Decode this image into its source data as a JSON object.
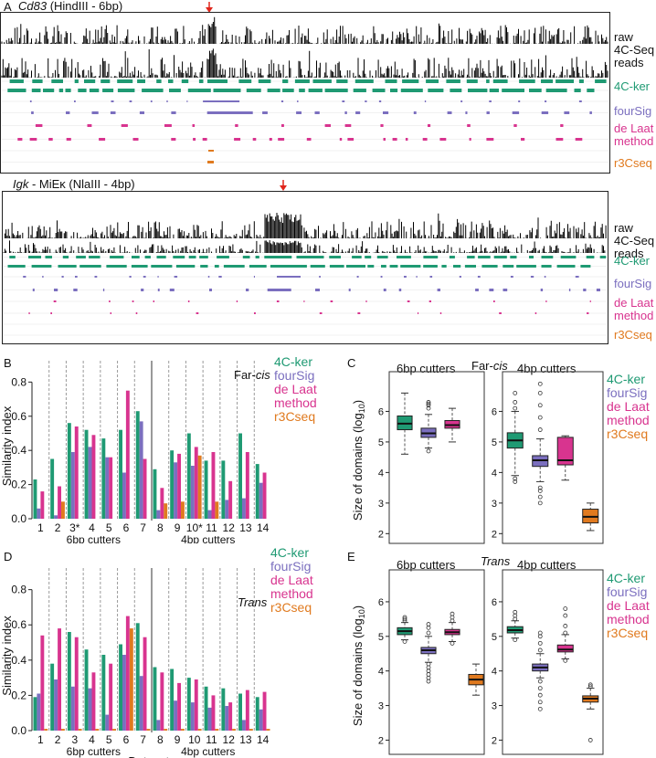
{
  "colors": {
    "kerC": "#1f9a73",
    "fourSig": "#7b6fbf",
    "deLaat": "#d8348f",
    "r3c": "#e07a1f",
    "red": "#e0251b"
  },
  "panelA": {
    "letter": "A",
    "top": {
      "gene": "Cd83",
      "enzyme": " (HindIII - 6bp)"
    },
    "bottom": {
      "gene": "Igk",
      "mid": " - MiEκ (NlaIII - 4bp)"
    },
    "labels": {
      "raw1": "raw",
      "raw2": "4C-Seq",
      "raw3": "reads",
      "ker": "4C-ker",
      "foursig": "fourSig",
      "delaat1": "de Laat",
      "delaat2": "method",
      "r3c": "r3Cseq"
    }
  },
  "panelB": {
    "letter": "B",
    "region": "Far-",
    "region_it": "cis"
  },
  "panelD": {
    "letter": "D",
    "region": "Trans"
  },
  "panelC": {
    "letter": "C",
    "region": "Far-",
    "region_it": "cis",
    "g1": "6bp cutters",
    "g2": "4bp cutters"
  },
  "panelE": {
    "letter": "E",
    "region": "Trans",
    "g1": "6bp cutters",
    "g2": "4bp cutters"
  },
  "legend": {
    "ker": "4C-ker",
    "foursig": "fourSig",
    "delaat1": "de Laat",
    "delaat2": "method",
    "r3c": "r3Cseq"
  },
  "axes": {
    "sim_ylabel": "Similarity index",
    "xlabel": "Datasets",
    "g6": "6bp cutters",
    "g4": "4bp cutters",
    "size_ylabel": "Size of domains (log",
    "size_sub": "10",
    "size_close": ")"
  },
  "chart_data": [
    {
      "type": "bar",
      "title": "Far-cis",
      "ylabel": "Similarity index",
      "xlabel": "Datasets",
      "ylim": [
        0,
        0.85
      ],
      "yticks": [
        0.0,
        0.2,
        0.4,
        0.6,
        0.8
      ],
      "categories": [
        "1",
        "2",
        "3*",
        "4",
        "5",
        "6",
        "7",
        "8",
        "9",
        "10*",
        "11",
        "12",
        "13",
        "14"
      ],
      "series": [
        {
          "name": "4C-ker",
          "values": [
            0.23,
            0.35,
            0.56,
            0.52,
            0.47,
            0.52,
            0.63,
            0.29,
            0.4,
            0.5,
            0.34,
            0.34,
            0.5,
            0.32
          ]
        },
        {
          "name": "fourSig",
          "values": [
            0.06,
            0.02,
            0.39,
            0.42,
            0.36,
            0.27,
            0.57,
            0.05,
            0.33,
            0.31,
            0.05,
            0.11,
            0.12,
            0.21
          ]
        },
        {
          "name": "de Laat method",
          "values": [
            0.16,
            0.19,
            0.54,
            0.49,
            0.36,
            0.75,
            0.35,
            0.18,
            0.38,
            0.42,
            0.39,
            0.22,
            0.39,
            0.27
          ]
        },
        {
          "name": "r3Cseq",
          "values": [
            0.0,
            0.1,
            0.0,
            0.0,
            0.0,
            0.0,
            0.0,
            0.09,
            0.1,
            0.37,
            0.1,
            0.0,
            0.0,
            0.0
          ]
        }
      ]
    },
    {
      "type": "bar",
      "title": "Trans",
      "ylabel": "Similarity index",
      "xlabel": "Datasets",
      "ylim": [
        0,
        0.85
      ],
      "yticks": [
        0.0,
        0.2,
        0.4,
        0.6,
        0.8
      ],
      "categories": [
        "1",
        "2",
        "3",
        "4",
        "5",
        "6",
        "7",
        "8",
        "9",
        "10",
        "11",
        "12",
        "13",
        "14"
      ],
      "series": [
        {
          "name": "4C-ker",
          "values": [
            0.19,
            0.38,
            0.56,
            0.46,
            0.43,
            0.49,
            0.61,
            0.36,
            0.35,
            0.3,
            0.25,
            0.24,
            0.21,
            0.19
          ]
        },
        {
          "name": "fourSig",
          "values": [
            0.21,
            0.29,
            0.25,
            0.24,
            0.09,
            0.43,
            0.31,
            0.06,
            0.17,
            0.16,
            0.13,
            0.14,
            0.06,
            0.12
          ]
        },
        {
          "name": "de Laat method",
          "values": [
            0.54,
            0.58,
            0.53,
            0.33,
            0.38,
            0.65,
            0.53,
            0.33,
            0.27,
            0.29,
            0.2,
            0.16,
            0.23,
            0.22
          ]
        },
        {
          "name": "r3Cseq",
          "values": [
            0.01,
            0.01,
            0.01,
            0.01,
            0.01,
            0.58,
            0.01,
            0.01,
            0.01,
            0.01,
            0.01,
            0.01,
            0.01,
            0.01
          ]
        }
      ]
    },
    {
      "type": "box",
      "title": "Far-cis 6bp cutters",
      "ylabel": "Size of domains (log10)",
      "ylim": [
        1.8,
        7.0
      ],
      "yticks": [
        2,
        3,
        4,
        5,
        6
      ],
      "boxes": [
        {
          "name": "4C-ker",
          "whislo": 4.6,
          "q1": 5.4,
          "med": 5.6,
          "q3": 5.85,
          "whishi": 6.6,
          "fliers": []
        },
        {
          "name": "fourSig",
          "whislo": 4.8,
          "q1": 5.15,
          "med": 5.28,
          "q3": 5.45,
          "whishi": 5.9,
          "fliers": [
            4.7,
            6.1,
            6.2,
            6.25,
            6.3
          ]
        },
        {
          "name": "de Laat method",
          "whislo": 5.0,
          "q1": 5.45,
          "med": 5.55,
          "q3": 5.7,
          "whishi": 6.1,
          "fliers": []
        }
      ]
    },
    {
      "type": "box",
      "title": "Far-cis 4bp cutters",
      "ylabel": "Size of domains (log10)",
      "ylim": [
        1.8,
        7.0
      ],
      "yticks": [
        2,
        3,
        4,
        5,
        6
      ],
      "boxes": [
        {
          "name": "4C-ker",
          "whislo": 3.9,
          "q1": 4.8,
          "med": 5.05,
          "q3": 5.3,
          "whishi": 6.0,
          "fliers": [
            3.7,
            3.8,
            6.1,
            6.3,
            6.6
          ]
        },
        {
          "name": "fourSig",
          "whislo": 3.7,
          "q1": 4.2,
          "med": 4.4,
          "q3": 4.55,
          "whishi": 5.1,
          "fliers": [
            3.0,
            3.2,
            3.4,
            3.5,
            5.4,
            5.8,
            6.2,
            6.6,
            6.9
          ]
        },
        {
          "name": "de Laat method",
          "whislo": 3.75,
          "q1": 4.25,
          "med": 4.4,
          "q3": 5.15,
          "whishi": 5.2,
          "fliers": []
        },
        {
          "name": "r3Cseq",
          "whislo": 2.1,
          "q1": 2.35,
          "med": 2.55,
          "q3": 2.8,
          "whishi": 3.0,
          "fliers": []
        }
      ]
    },
    {
      "type": "box",
      "title": "Trans 6bp cutters",
      "ylabel": "Size of domains (log10)",
      "ylim": [
        1.8,
        6.5
      ],
      "yticks": [
        2,
        3,
        4,
        5,
        6
      ],
      "boxes": [
        {
          "name": "4C-ker",
          "whislo": 4.9,
          "q1": 5.05,
          "med": 5.15,
          "q3": 5.25,
          "whishi": 5.4,
          "fliers": [
            4.85,
            5.45,
            5.5,
            5.55
          ]
        },
        {
          "name": "fourSig",
          "whislo": 4.25,
          "q1": 4.5,
          "med": 4.6,
          "q3": 4.68,
          "whishi": 5.0,
          "fliers": [
            3.7,
            3.8,
            3.9,
            4.0,
            4.1,
            4.2,
            5.1,
            5.25,
            5.35
          ]
        },
        {
          "name": "de Laat method",
          "whislo": 4.85,
          "q1": 5.05,
          "med": 5.12,
          "q3": 5.2,
          "whishi": 5.4,
          "fliers": [
            4.8,
            5.45,
            5.55,
            5.65
          ]
        },
        {
          "name": "r3Cseq",
          "whislo": 3.3,
          "q1": 3.6,
          "med": 3.75,
          "q3": 3.9,
          "whishi": 4.2,
          "fliers": []
        }
      ]
    },
    {
      "type": "box",
      "title": "Trans 4bp cutters",
      "ylabel": "Size of domains (log10)",
      "ylim": [
        1.8,
        6.5
      ],
      "yticks": [
        2,
        3,
        4,
        5,
        6
      ],
      "boxes": [
        {
          "name": "4C-ker",
          "whislo": 4.95,
          "q1": 5.1,
          "med": 5.18,
          "q3": 5.28,
          "whishi": 5.45,
          "fliers": [
            4.9,
            5.5,
            5.6,
            5.7
          ]
        },
        {
          "name": "fourSig",
          "whislo": 3.8,
          "q1": 4.0,
          "med": 4.1,
          "q3": 4.2,
          "whishi": 4.5,
          "fliers": [
            2.9,
            3.1,
            3.3,
            3.5,
            3.7,
            4.6,
            4.8,
            5.0,
            5.1
          ]
        },
        {
          "name": "de Laat method",
          "whislo": 4.35,
          "q1": 4.55,
          "med": 4.62,
          "q3": 4.75,
          "whishi": 5.05,
          "fliers": [
            4.3,
            5.1,
            5.3,
            5.6,
            5.8
          ]
        },
        {
          "name": "r3Cseq",
          "whislo": 2.9,
          "q1": 3.1,
          "med": 3.2,
          "q3": 3.28,
          "whishi": 3.5,
          "fliers": [
            2.0,
            3.55,
            3.6
          ]
        }
      ]
    }
  ]
}
